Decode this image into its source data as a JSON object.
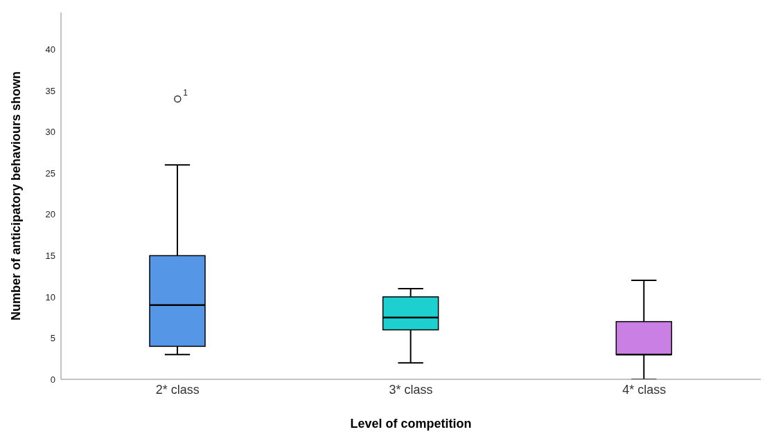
{
  "chart_data": {
    "type": "box",
    "xlabel": "Level of competition",
    "ylabel": "Number of anticipatory behaviours shown",
    "categories": [
      "2* class",
      "3* class",
      "4* class"
    ],
    "colors": [
      "#5596e6",
      "#1ecfcf",
      "#c97fe3"
    ],
    "boxes": [
      {
        "low": 3,
        "q1": 4,
        "median": 9,
        "q3": 15,
        "high": 26,
        "outliers": [
          34
        ]
      },
      {
        "low": 2,
        "q1": 6,
        "median": 7.5,
        "q3": 10,
        "high": 11
      },
      {
        "low": 0,
        "q1": 3,
        "median": 3,
        "q3": 7,
        "high": 12
      }
    ],
    "annotations": [
      "1"
    ],
    "ylim": [
      0,
      44.5
    ],
    "yticks": [
      0,
      5,
      10,
      15,
      20,
      25,
      30,
      35,
      40
    ],
    "grid": false,
    "legend": false
  }
}
